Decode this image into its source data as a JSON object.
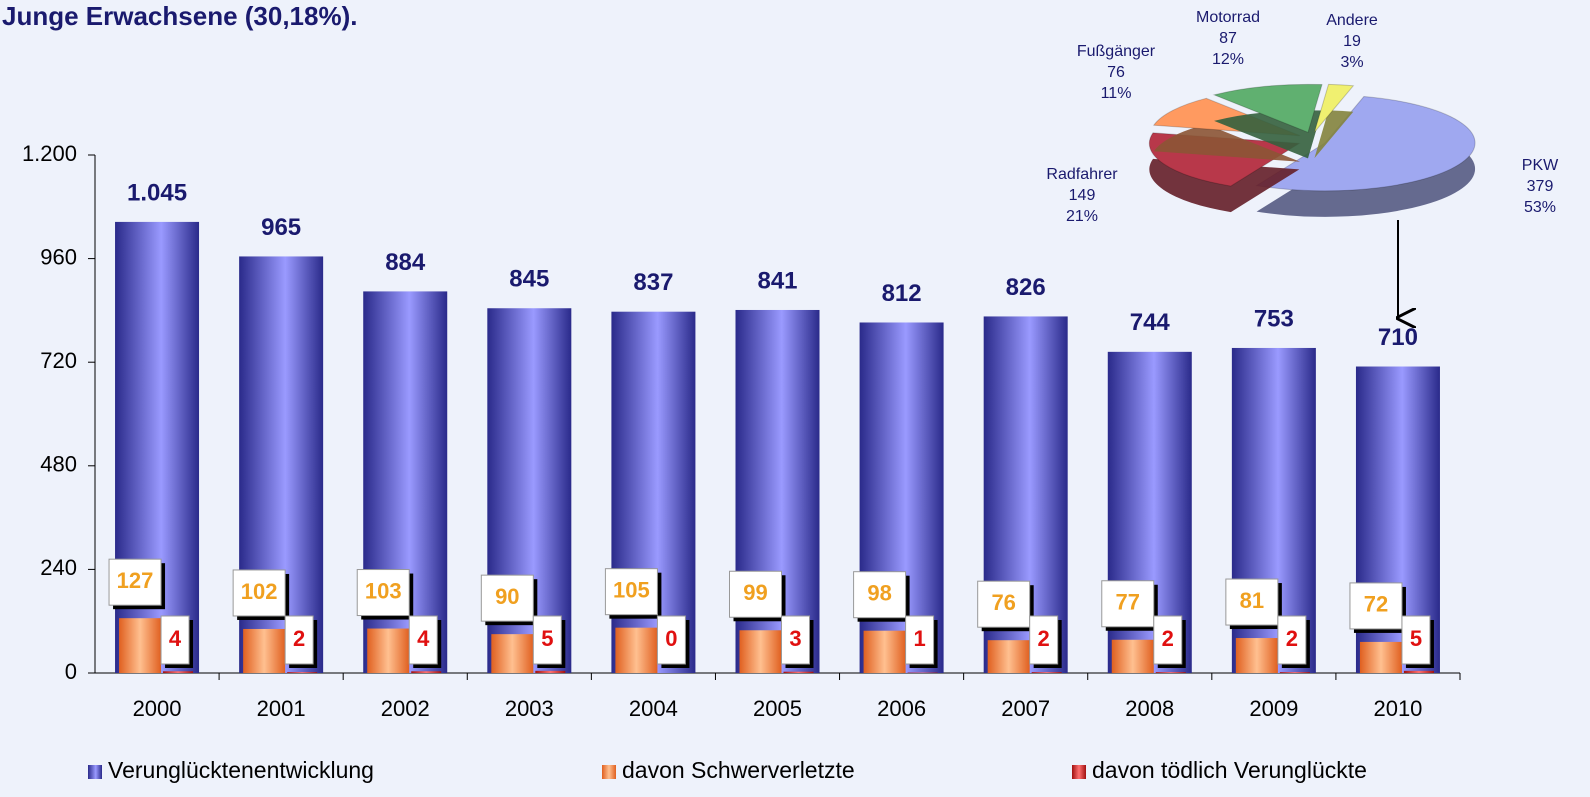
{
  "chart_data": [
    {
      "type": "bar",
      "title": "Junge Erwachsene (30,18%).",
      "categories": [
        "2000",
        "2001",
        "2002",
        "2003",
        "2004",
        "2005",
        "2006",
        "2007",
        "2008",
        "2009",
        "2010"
      ],
      "series": [
        {
          "name": "Verunglücktenentwicklung",
          "color": "#5c5ce0",
          "values": [
            1045,
            965,
            884,
            845,
            837,
            841,
            812,
            826,
            744,
            753,
            710
          ],
          "value_labels": [
            "1.045",
            "965",
            "884",
            "845",
            "837",
            "841",
            "812",
            "826",
            "744",
            "753",
            "710"
          ]
        },
        {
          "name": "davon Schwerverletzte",
          "color": "#ff9a50",
          "values": [
            127,
            102,
            103,
            90,
            105,
            99,
            98,
            76,
            77,
            81,
            72
          ]
        },
        {
          "name": "davon tödlich Verunglückte",
          "color": "#e03030",
          "values": [
            4,
            2,
            4,
            5,
            0,
            3,
            1,
            2,
            2,
            2,
            5
          ]
        }
      ],
      "ylim": [
        0,
        1200
      ],
      "yticks": [
        0,
        240,
        480,
        720,
        960,
        {
          "value": 1200,
          "label": "1.200"
        }
      ]
    },
    {
      "type": "pie",
      "categories": [
        "PKW",
        "Radfahrer",
        "Fußgänger",
        "Motorrad",
        "Andere"
      ],
      "values": [
        379,
        149,
        76,
        87,
        19
      ],
      "percent_labels": [
        "53%",
        "21%",
        "11%",
        "12%",
        "3%"
      ],
      "colors": [
        "#9fa8f0",
        "#b8384a",
        "#ff9a60",
        "#60b070",
        "#f0f070"
      ]
    }
  ]
}
